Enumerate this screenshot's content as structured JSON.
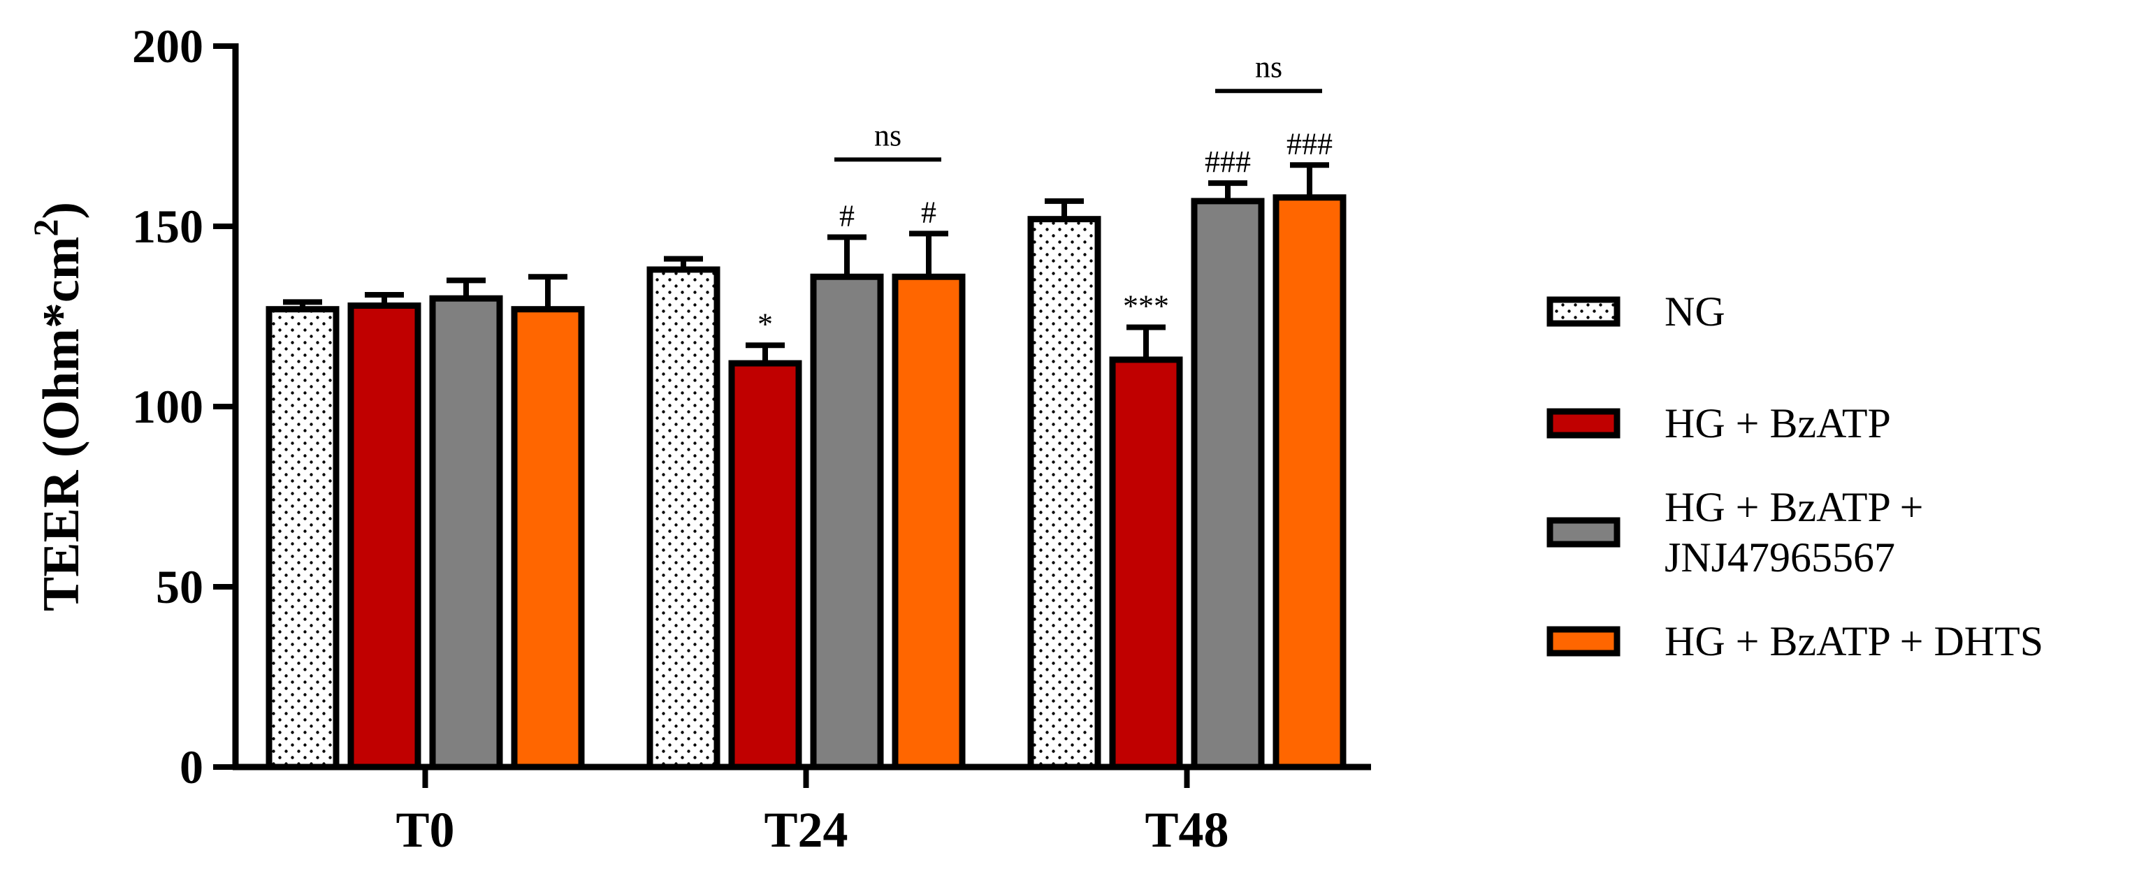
{
  "chart_data": {
    "type": "bar",
    "categories": [
      "T0",
      "T24",
      "T48"
    ],
    "ylabel": "TEER (Ohm*cm²)",
    "ylabel_parts": {
      "main": "TEER (Ohm*cm",
      "sup": "2",
      "close": ")"
    },
    "ylim": [
      0,
      200
    ],
    "yticks": [
      0,
      50,
      100,
      150,
      200
    ],
    "series": [
      {
        "name": "NG",
        "values": [
          127,
          138,
          152
        ],
        "errors": [
          2,
          3,
          5
        ],
        "color": "#ffffff",
        "pattern": "dots",
        "annotations": [
          "",
          "",
          ""
        ]
      },
      {
        "name": "HG + BzATP",
        "values": [
          128,
          112,
          113
        ],
        "errors": [
          3,
          5,
          9
        ],
        "color": "#c00000",
        "pattern": "solid",
        "annotations": [
          "",
          "*",
          "***"
        ]
      },
      {
        "name": "HG + BzATP + JNJ47965567",
        "legend_lines": [
          "HG + BzATP +",
          "JNJ47965567"
        ],
        "values": [
          130,
          136,
          157
        ],
        "errors": [
          5,
          11,
          5
        ],
        "color": "#808080",
        "pattern": "solid",
        "annotations": [
          "",
          "#",
          "###"
        ]
      },
      {
        "name": "HG + BzATP + DHTS",
        "values": [
          127,
          136,
          158
        ],
        "errors": [
          9,
          12,
          9
        ],
        "color": "#ff6600",
        "pattern": "solid",
        "annotations": [
          "",
          "#",
          "###"
        ]
      }
    ],
    "comparisons": [
      {
        "category": 1,
        "series": [
          2,
          3
        ],
        "label": "ns"
      },
      {
        "category": 2,
        "series": [
          2,
          3
        ],
        "label": "ns"
      }
    ],
    "legend_position": "right",
    "grid": false
  }
}
